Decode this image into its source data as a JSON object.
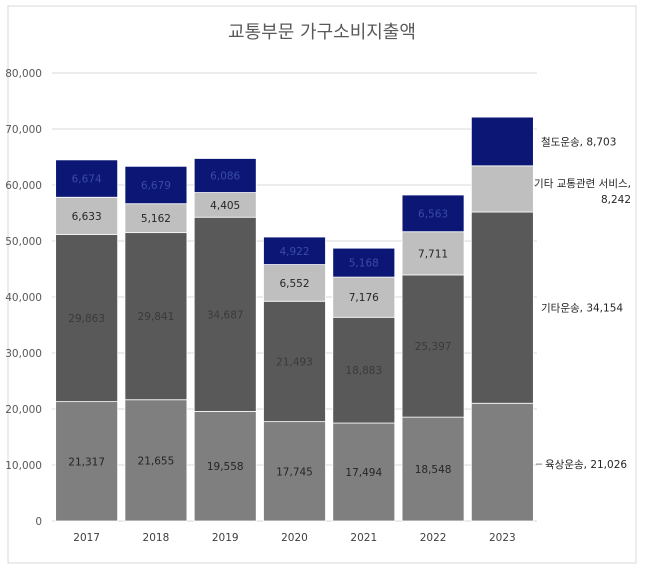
{
  "chart_data": {
    "type": "bar",
    "stacked": true,
    "title": "교통부문 가구소비지출액",
    "categories": [
      "2017",
      "2018",
      "2019",
      "2020",
      "2021",
      "2022",
      "2023"
    ],
    "ylim": [
      0,
      80000
    ],
    "yticks": [
      "0",
      "10,000",
      "20,000",
      "30,000",
      "40,000",
      "50,000",
      "60,000",
      "70,000",
      "80,000"
    ],
    "grid": true,
    "series": [
      {
        "key": "land",
        "color": "#7f7f7f",
        "label_color": "#262626",
        "values": [
          21317,
          21655,
          19558,
          17745,
          17494,
          18548,
          21026
        ],
        "labels": [
          "21,317",
          "21,655",
          "19,558",
          "17,745",
          "17,494",
          "18,548",
          null
        ],
        "annotation": "육상운송, 21,026"
      },
      {
        "key": "other_transport",
        "color": "#595959",
        "label_color": "#3a3a3a",
        "values": [
          29863,
          29841,
          34687,
          21493,
          18883,
          25397,
          34154
        ],
        "labels": [
          "29,863",
          "29,841",
          "34,687",
          "21,493",
          "18,883",
          "25,397",
          null
        ],
        "annotation": "기타운송, 34,154"
      },
      {
        "key": "other_services",
        "color": "#bfbfbf",
        "label_color": "#262626",
        "values": [
          6633,
          5162,
          4405,
          6552,
          7176,
          7711,
          8242
        ],
        "labels": [
          "6,633",
          "5,162",
          "4,405",
          "6,552",
          "7,176",
          "7,711",
          null
        ],
        "annotation_lines": [
          "기타 교통관련 서비스,",
          "8,242"
        ]
      },
      {
        "key": "rail",
        "color": "#0c1775",
        "label_color": "#3a4aa8",
        "values": [
          6674,
          6679,
          6086,
          4922,
          5168,
          6563,
          8703
        ],
        "labels": [
          "6,674",
          "6,679",
          "6,086",
          "4,922",
          "5,168",
          "6,563",
          null
        ],
        "annotation": "철도운송, 8,703"
      }
    ]
  }
}
